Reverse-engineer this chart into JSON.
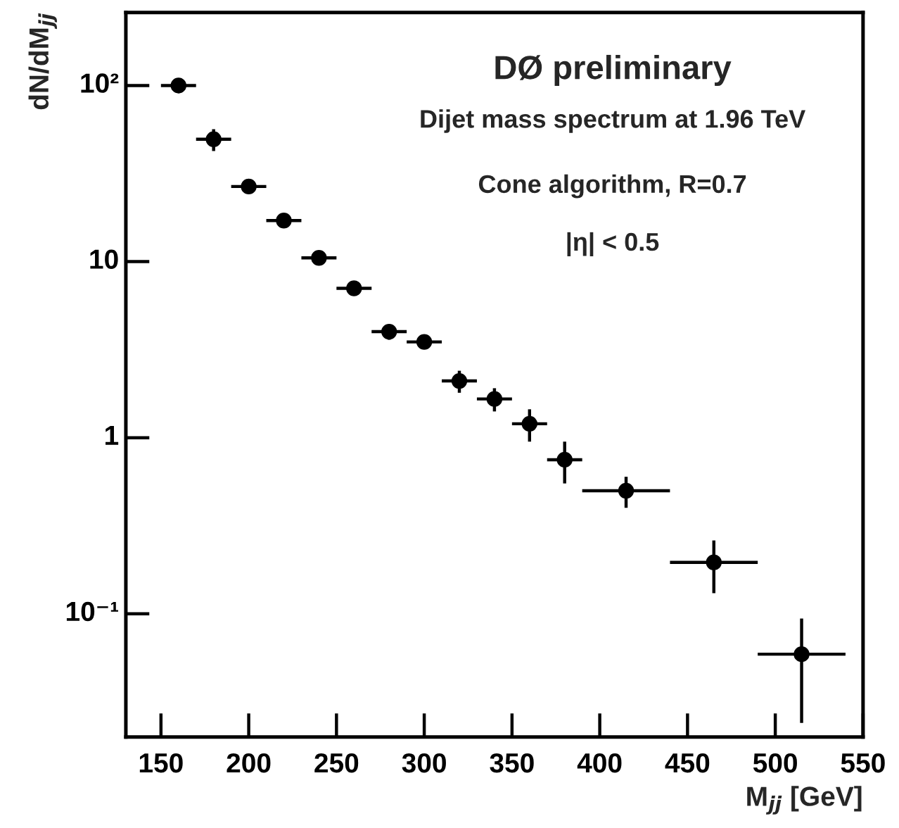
{
  "chart_data": {
    "type": "scatter",
    "xlabel": "M$_{jj}$ [GeV]",
    "ylabel": "dN/dM$_{jj}$",
    "annotations": [
      "DØ preliminary",
      "Dijet mass spectrum at 1.96 TeV",
      "Cone algorithm, R=0.7",
      "|η| < 0.5"
    ],
    "x": [
      160,
      180,
      200,
      220,
      240,
      260,
      280,
      300,
      320,
      340,
      360,
      380,
      415,
      465,
      515
    ],
    "series": [
      {
        "color": "#000000",
        "values": [
          100,
          49.5,
          26.7,
          17.1,
          10.5,
          7.05,
          4.0,
          3.5,
          2.1,
          1.66,
          1.2,
          0.75,
          0.5,
          0.196,
          0.059
        ],
        "errors": [
          5,
          7,
          1.5,
          1,
          0.6,
          0.4,
          0.4,
          0.3,
          0.3,
          0.25,
          0.25,
          0.2,
          0.1,
          0.065,
          0.035
        ],
        "xerrors": [
          10,
          10,
          10,
          10,
          10,
          10,
          10,
          10,
          10,
          10,
          10,
          10,
          25,
          25,
          25
        ]
      }
    ],
    "log": "y",
    "marker": "circle",
    "grid": false,
    "legend": false,
    "xlim": [
      130,
      550
    ],
    "xticks": [
      150,
      200,
      250,
      300,
      350,
      400,
      450,
      500,
      550
    ],
    "ylim": [
      0.02,
      260
    ],
    "yticks": [
      {
        "value": 0.1,
        "label": "10⁻¹"
      },
      1,
      10,
      {
        "value": 100,
        "label": "10²"
      }
    ]
  }
}
